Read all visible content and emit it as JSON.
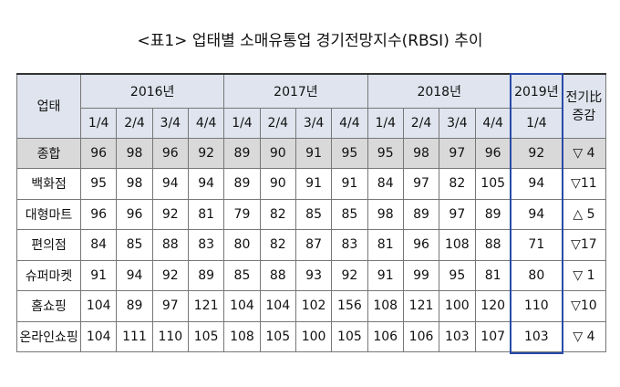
{
  "title": "<표1> 업태별 소매유통업 경기전망지수(RBSI) 추이",
  "table": {
    "header": {
      "first": "업태",
      "years": [
        "2016년",
        "2017년",
        "2018년",
        "2019년"
      ],
      "quarters": [
        "1/4",
        "2/4",
        "3/4",
        "4/4"
      ],
      "last_quarter": "1/4",
      "change": [
        "전기比",
        "증감"
      ]
    },
    "rows": [
      {
        "label": "종합",
        "values": [
          96,
          98,
          96,
          92,
          89,
          90,
          91,
          95,
          95,
          98,
          97,
          96
        ],
        "current": 92,
        "change": "▽ 4"
      },
      {
        "label": "백화점",
        "values": [
          95,
          98,
          94,
          94,
          89,
          90,
          91,
          91,
          84,
          97,
          82,
          105
        ],
        "current": 94,
        "change": "▽11"
      },
      {
        "label": "대형마트",
        "values": [
          96,
          96,
          92,
          81,
          79,
          82,
          85,
          85,
          98,
          89,
          97,
          89
        ],
        "current": 94,
        "change": "△ 5"
      },
      {
        "label": "편의점",
        "values": [
          84,
          85,
          88,
          83,
          80,
          82,
          87,
          83,
          81,
          96,
          108,
          88
        ],
        "current": 71,
        "change": "▽17"
      },
      {
        "label": "슈퍼마켓",
        "values": [
          91,
          94,
          92,
          89,
          85,
          88,
          93,
          92,
          91,
          99,
          95,
          81
        ],
        "current": 80,
        "change": "▽ 1"
      },
      {
        "label": "홈쇼핑",
        "values": [
          104,
          89,
          97,
          121,
          104,
          104,
          102,
          156,
          108,
          121,
          100,
          120
        ],
        "current": 110,
        "change": "▽10"
      },
      {
        "label": "온라인쇼핑",
        "values": [
          104,
          111,
          110,
          105,
          108,
          105,
          100,
          105,
          106,
          106,
          103,
          107
        ],
        "current": 103,
        "change": "▽ 4"
      }
    ]
  }
}
